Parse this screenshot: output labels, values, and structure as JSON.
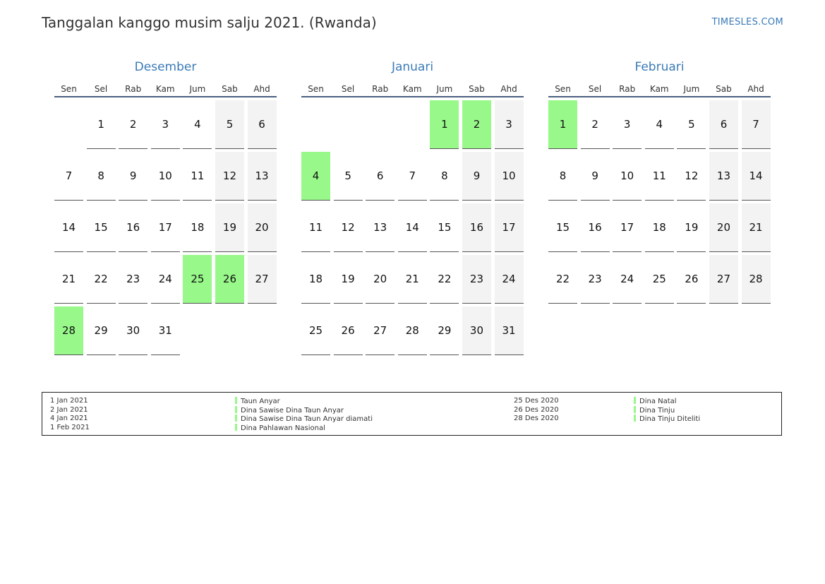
{
  "header": {
    "title": "Tanggalan kanggo musim salju 2021. (Rwanda)",
    "brand": "TIMESLES.COM"
  },
  "weekdays": [
    "Sen",
    "Sel",
    "Rab",
    "Kam",
    "Jum",
    "Sab",
    "Ahd"
  ],
  "colors": {
    "holiday": "#98f88a",
    "weekend": "#f3f3f3",
    "accent": "#3a7ab8"
  },
  "months": [
    {
      "name": "Desember",
      "offset": 1,
      "days": 31,
      "holidays": [
        25,
        26,
        28
      ]
    },
    {
      "name": "Januari",
      "offset": 4,
      "days": 31,
      "holidays": [
        1,
        2,
        4
      ]
    },
    {
      "name": "Februari",
      "offset": 0,
      "days": 28,
      "holidays": [
        1
      ]
    }
  ],
  "legend": {
    "left": [
      {
        "date": "1 Jan 2021",
        "name": "Taun Anyar"
      },
      {
        "date": "2 Jan 2021",
        "name": "Dina Sawise Dina Taun Anyar"
      },
      {
        "date": "4 Jan 2021",
        "name": "Dina Sawise Dina Taun Anyar diamati"
      },
      {
        "date": "1 Feb 2021",
        "name": "Dina Pahlawan Nasional"
      }
    ],
    "right": [
      {
        "date": "25 Des 2020",
        "name": "Dina Natal"
      },
      {
        "date": "26 Des 2020",
        "name": "Dina Tinju"
      },
      {
        "date": "28 Des 2020",
        "name": "Dina Tinju Diteliti"
      }
    ]
  }
}
